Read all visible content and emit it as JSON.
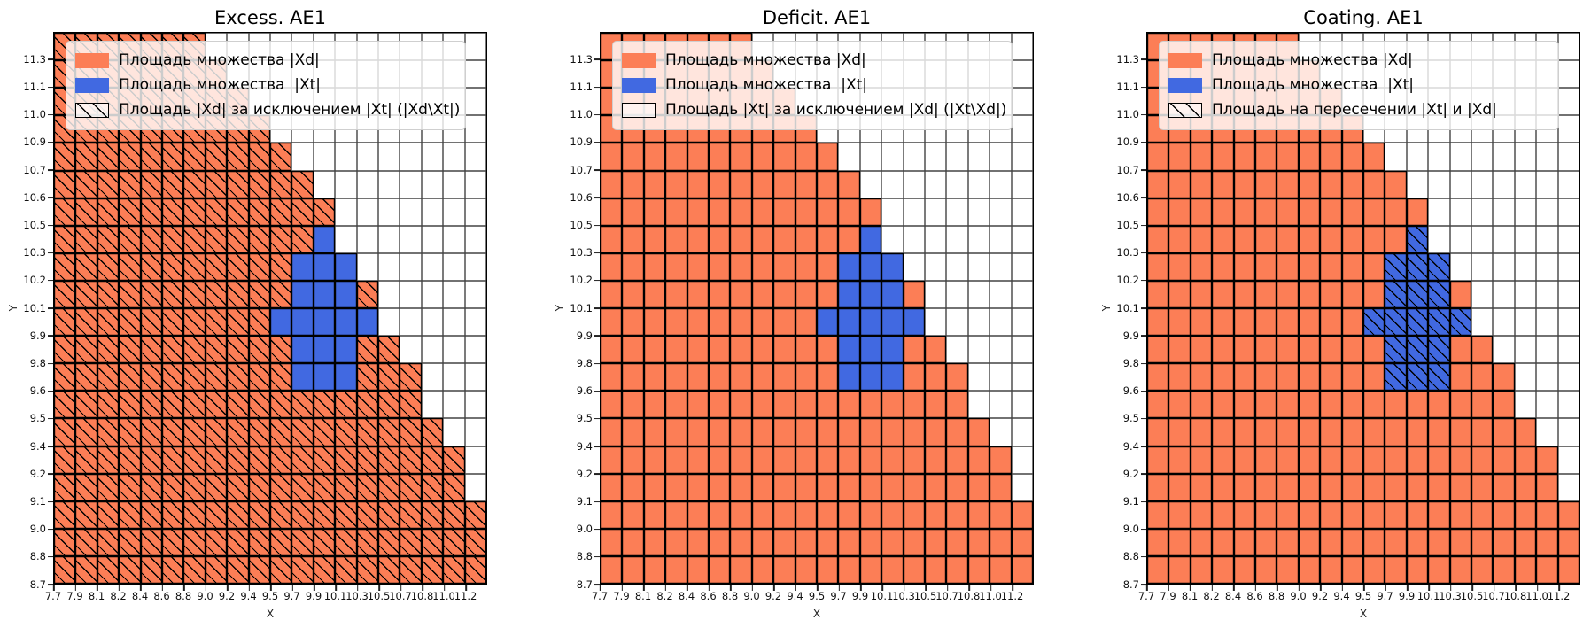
{
  "colors": {
    "xd_orange": "#FC7E56",
    "xt_blue": "#4169E1",
    "cell_edge": "#000000",
    "legend_border": "#cfcfcf"
  },
  "chart_data": {
    "type": "heatmap",
    "xlabel": "X",
    "ylabel": "Y",
    "x_ticks": [
      "7.7",
      "7.9",
      "8.1",
      "8.2",
      "8.4",
      "8.6",
      "8.8",
      "9.0",
      "9.2",
      "9.4",
      "9.5",
      "9.7",
      "9.9",
      "10.1",
      "10.3",
      "10.5",
      "10.7",
      "10.8",
      "11.0",
      "11.2"
    ],
    "y_ticks_bottom_to_top": [
      "8.7",
      "8.8",
      "9.0",
      "9.1",
      "9.2",
      "9.4",
      "9.5",
      "9.6",
      "9.8",
      "9.9",
      "10.1",
      "10.2",
      "10.3",
      "10.5",
      "10.6",
      "10.7",
      "10.9",
      "11.0",
      "11.1",
      "11.3"
    ],
    "cell_legend": {
      "O": "set |Xd| (orange)",
      "B": "set |Xt| (blue)",
      ".": "empty"
    },
    "grid_rows_top_to_bottom": [
      "OOOOOOO.............",
      "OOOOOOOO............",
      "OOOOOOOOO...........",
      "OOOOOOOOOO..........",
      "OOOOOOOOOOO.........",
      "OOOOOOOOOOOO........",
      "OOOOOOOOOOOOO.......",
      "OOOOOOOOOOOOB.......",
      "OOOOOOOOOOOBBB......",
      "OOOOOOOOOOOBBBO.....",
      "OOOOOOOOOOBBBBB.....",
      "OOOOOOOOOOOBBBOO....",
      "OOOOOOOOOOOBBBOOO...",
      "OOOOOOOOOOOOOOOOO...",
      "OOOOOOOOOOOOOOOOOO..",
      "OOOOOOOOOOOOOOOOOOO.",
      "OOOOOOOOOOOOOOOOOOO.",
      "OOOOOOOOOOOOOOOOOOOO",
      "OOOOOOOOOOOOOOOOOOOO",
      "OOOOOOOOOOOOOOOOOOOO"
    ],
    "subplots": [
      {
        "title": "Excess. AE1",
        "hatched_cells": "O",
        "legend": [
          "Площадь множества |Xd|",
          "Площадь множества  |Xt|",
          "Площадь |Xd| за исключением |Xt| (|Xd\\Xt|)"
        ]
      },
      {
        "title": "Deficit. AE1",
        "hatched_cells": "none",
        "legend": [
          "Площадь множества |Xd|",
          "Площадь множества  |Xt|",
          "Площадь |Xt| за исключением |Xd| (|Xt\\Xd|)"
        ]
      },
      {
        "title": "Coating. AE1",
        "hatched_cells": "B",
        "legend": [
          "Площадь множества |Xd|",
          "Площадь множества  |Xt|",
          "Площадь на пересечении |Xt| и |Xd|"
        ]
      }
    ]
  }
}
